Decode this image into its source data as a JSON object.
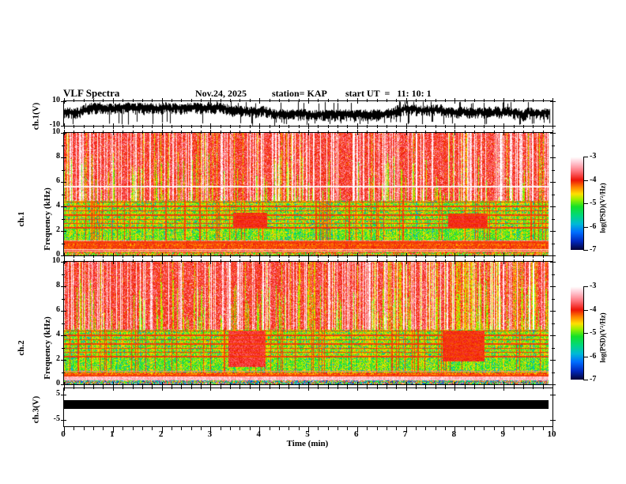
{
  "title": {
    "main": "VLF Spectra",
    "date": "Nov.24, 2025",
    "station": "station= KAP",
    "start_ut": "start UT  =   11: 10: 1"
  },
  "axes": {
    "time": {
      "label": "Time (min)",
      "min": 0,
      "max": 10,
      "major_step": 1,
      "minor_step": 0.2,
      "tick_labels": [
        "0",
        "1",
        "2",
        "3",
        "4",
        "5",
        "6",
        "7",
        "8",
        "9",
        "10"
      ]
    },
    "ch1_volt": {
      "label": "ch.1(V)",
      "min": -10,
      "max": 10,
      "ticks": [
        {
          "v": 10,
          "label": "10"
        },
        {
          "v": -10,
          "label": "-10"
        }
      ]
    },
    "ch1_freq": {
      "line1": "ch.1",
      "line2": "Frequency (kHz)",
      "min": 0,
      "max": 10,
      "tick_values": [
        0,
        2,
        4,
        6,
        8,
        10
      ],
      "tick_labels": [
        "0",
        "2",
        "4",
        "6",
        "8",
        "10"
      ]
    },
    "ch2_freq": {
      "line1": "ch.2",
      "line2": "Frequency (kHz)",
      "min": 0,
      "max": 10,
      "tick_values": [
        0,
        2,
        4,
        6,
        8,
        10
      ],
      "tick_labels": [
        "0",
        "2",
        "4",
        "6",
        "8",
        "10"
      ]
    },
    "ch3_volt": {
      "label": "ch.3(V)",
      "min": -7.5,
      "max": 7.5,
      "ticks": [
        {
          "v": 5,
          "label": "5"
        },
        {
          "v": -5,
          "label": "-5"
        }
      ]
    }
  },
  "colorbars": {
    "label": "log(PSD)(V²/Hz)",
    "zlim": [
      -7,
      -3
    ],
    "tick_labels": [
      "-3",
      "-4",
      "-5",
      "-6",
      "-7"
    ],
    "stops": [
      {
        "level": -7.0,
        "color": "#05053c"
      },
      {
        "level": -6.65,
        "color": "#0028be"
      },
      {
        "level": -6.25,
        "color": "#006eff"
      },
      {
        "level": -5.9,
        "color": "#00b9d7"
      },
      {
        "level": -5.55,
        "color": "#00d782"
      },
      {
        "level": -5.15,
        "color": "#14e128"
      },
      {
        "level": -4.85,
        "color": "#96f000"
      },
      {
        "level": -4.6,
        "color": "#ffe100"
      },
      {
        "level": -4.3,
        "color": "#ff8200"
      },
      {
        "level": -4.0,
        "color": "#ee1408"
      },
      {
        "level": -3.6,
        "color": "#ff7882"
      },
      {
        "level": -3.25,
        "color": "#ffc8d2"
      },
      {
        "level": -3.0,
        "color": "#ffffff"
      }
    ]
  },
  "chart_data": [
    {
      "type": "line",
      "name": "ch1-voltage-waveform",
      "ylabel": "ch.1(V)",
      "xlim": [
        0,
        10
      ],
      "ylim": [
        -10,
        10
      ],
      "data_end_min": 9.95,
      "description": "dense black broadband noise trace, mean about +2 V, spikes reaching +10 and -10 V",
      "render": {
        "mean": 2.2,
        "wander": 1.2,
        "up_spread": 3.0,
        "down_spread": 4.2,
        "spike_up_p": 0.05,
        "spike_down_p": 0.08
      }
    },
    {
      "type": "heatmap",
      "name": "ch1-vlf-spectrogram",
      "xlabel": "Time (min)",
      "ylabel": "Frequency (kHz)",
      "zlabel": "log(PSD)(V²/Hz)",
      "xlim": [
        0,
        10
      ],
      "ylim": [
        0,
        10
      ],
      "zlim": [
        -7,
        -3
      ],
      "data_end_min": 9.92,
      "bands": [
        {
          "f": [
            4.45,
            10.01
          ],
          "level": -3.88,
          "noise": 0.3,
          "zone": "upper"
        },
        {
          "f": [
            2.2,
            4.45
          ],
          "level": -4.85,
          "noise": 0.5,
          "zone": "mid"
        },
        {
          "f": [
            1.2,
            2.2
          ],
          "level": -4.95,
          "noise": 0.4,
          "zone": "mid"
        },
        {
          "f": [
            0.95,
            1.2
          ],
          "level": -3.5,
          "noise": 0.25,
          "zone": "low"
        },
        {
          "f": [
            0.28,
            0.95
          ],
          "level": -4.15,
          "noise": 0.3,
          "zone": "low"
        },
        {
          "f": [
            0.0,
            0.28
          ],
          "level": -4.5,
          "noise": 1.0,
          "zone": "low"
        }
      ],
      "red_hlines": [
        4.35,
        4.0,
        3.65,
        3.3,
        2.95,
        2.6,
        2.25,
        1.12,
        1.02,
        0.75,
        0.6
      ],
      "white_hlines": [
        {
          "f": 5.62,
          "level": -3.05
        },
        {
          "f": 0.5,
          "level": -3.15
        },
        {
          "f": 0.35,
          "level": -3.3
        }
      ],
      "patches": [
        {
          "t": [
            3.45,
            4.15
          ],
          "f": [
            2.3,
            3.5
          ],
          "level": -3.95,
          "noise": 0.15
        },
        {
          "t": [
            7.85,
            8.65
          ],
          "f": [
            2.35,
            3.45
          ],
          "level": -3.95,
          "noise": 0.15
        }
      ],
      "streaks": {
        "white": 0.06,
        "yellow": 0.2,
        "cyan": 0.05,
        "red": 0.12,
        "spike": 0.14
      }
    },
    {
      "type": "heatmap",
      "name": "ch2-vlf-spectrogram",
      "xlabel": "Time (min)",
      "ylabel": "Frequency (kHz)",
      "zlabel": "log(PSD)(V²/Hz)",
      "xlim": [
        0,
        10
      ],
      "ylim": [
        0,
        10
      ],
      "zlim": [
        -7,
        -3
      ],
      "data_end_min": 9.92,
      "bands": [
        {
          "f": [
            4.45,
            10.01
          ],
          "level": -3.88,
          "noise": 0.3,
          "zone": "upper"
        },
        {
          "f": [
            2.2,
            4.45
          ],
          "level": -4.85,
          "noise": 0.5,
          "zone": "mid"
        },
        {
          "f": [
            1.0,
            2.2
          ],
          "level": -4.95,
          "noise": 0.4,
          "zone": "mid"
        },
        {
          "f": [
            0.68,
            1.0
          ],
          "level": -4.2,
          "noise": 0.35,
          "zone": "low"
        },
        {
          "f": [
            0.35,
            0.68
          ],
          "level": -3.3,
          "noise": 0.2,
          "zone": "low"
        },
        {
          "f": [
            0.0,
            0.35
          ],
          "level": -5.0,
          "noise": 2.0,
          "zone": "rgb"
        }
      ],
      "red_hlines": [
        4.35,
        4.0,
        3.65,
        3.3,
        2.95,
        2.6,
        2.25,
        0.72
      ],
      "white_hlines": [
        {
          "f": 1.05,
          "level": -3.6
        }
      ],
      "patches": [
        {
          "t": [
            3.35,
            4.1
          ],
          "f": [
            1.4,
            4.3
          ],
          "level": -3.85,
          "noise": 0.2
        },
        {
          "t": [
            7.75,
            8.6
          ],
          "f": [
            1.9,
            4.35
          ],
          "level": -4.0,
          "noise": 0.2
        }
      ],
      "streaks": {
        "white": 0.06,
        "yellow": 0.2,
        "cyan": 0.05,
        "red": 0.12,
        "spike": 0.14,
        "white_extra": {
          "t": [
            6.3,
            9.7
          ],
          "p": 0.18
        }
      }
    },
    {
      "type": "line",
      "name": "ch3-voltage",
      "ylabel": "ch.3(V)",
      "xlim": [
        0,
        10
      ],
      "ylim": [
        -7.5,
        7.5
      ],
      "data_end_min": 9.92,
      "value": 0,
      "thickness_v": 3.4,
      "description": "flat saturated black bar centered near 0 V for the whole record"
    }
  ]
}
